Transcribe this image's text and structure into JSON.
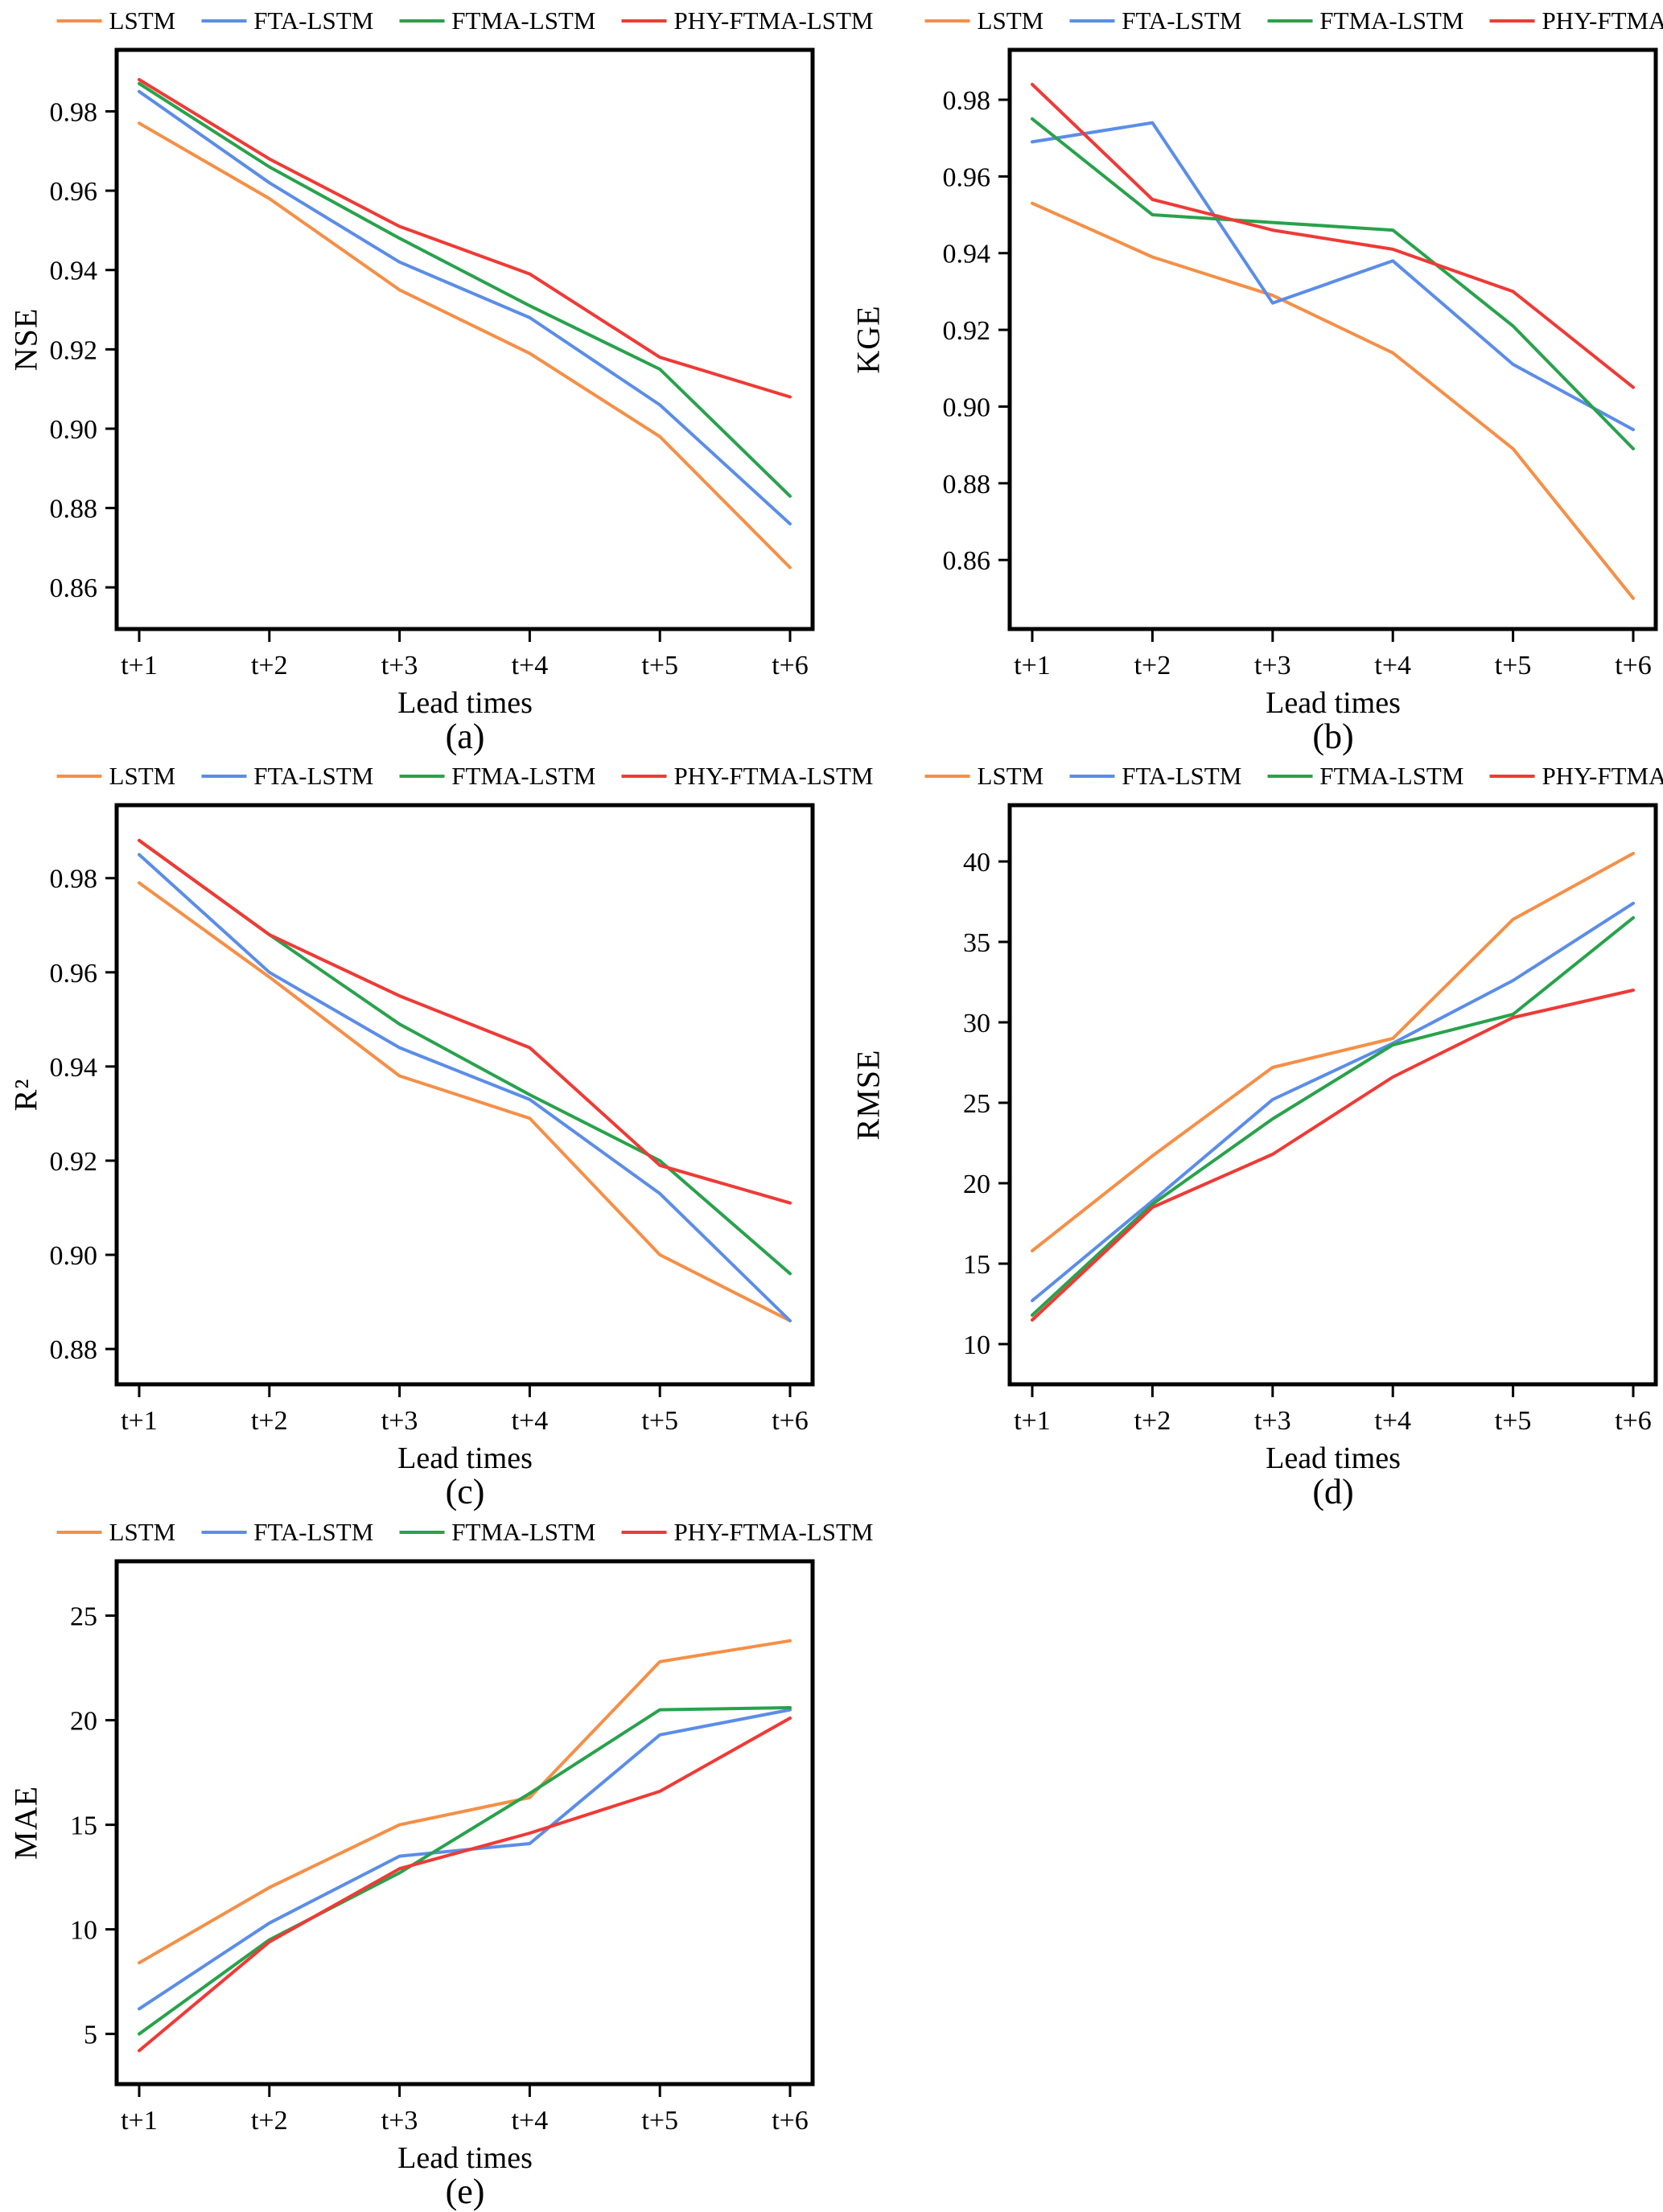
{
  "legend_items": [
    {
      "label": "LSTM",
      "color": "#F58F46"
    },
    {
      "label": "FTA-LSTM",
      "color": "#5B8DE8"
    },
    {
      "label": "FTMA-LSTM",
      "color": "#28A24C"
    },
    {
      "label": "PHY-FTMA-LSTM",
      "color": "#EF3A36"
    }
  ],
  "chart_data": [
    {
      "id": "a",
      "type": "line",
      "sublabel": "(a)",
      "xlabel": "Lead times",
      "ylabel": "NSE",
      "categories": [
        "t+1",
        "t+2",
        "t+3",
        "t+4",
        "t+5",
        "t+6"
      ],
      "ylim": [
        0.8495,
        0.9955
      ],
      "yticks": [
        0.86,
        0.88,
        0.9,
        0.92,
        0.94,
        0.96,
        0.98
      ],
      "ydecimals": 2,
      "legend_position": "top",
      "grid": false,
      "series": [
        {
          "name": "LSTM",
          "values": [
            0.977,
            0.958,
            0.935,
            0.919,
            0.898,
            0.865
          ]
        },
        {
          "name": "FTA-LSTM",
          "values": [
            0.985,
            0.962,
            0.942,
            0.928,
            0.906,
            0.876
          ]
        },
        {
          "name": "FTMA-LSTM",
          "values": [
            0.987,
            0.966,
            0.948,
            0.931,
            0.915,
            0.883
          ]
        },
        {
          "name": "PHY-FTMA-LSTM",
          "values": [
            0.988,
            0.968,
            0.951,
            0.939,
            0.918,
            0.908
          ]
        }
      ]
    },
    {
      "id": "b",
      "type": "line",
      "sublabel": "(b)",
      "xlabel": "Lead times",
      "ylabel": "KGE",
      "categories": [
        "t+1",
        "t+2",
        "t+3",
        "t+4",
        "t+5",
        "t+6"
      ],
      "ylim": [
        0.842,
        0.993
      ],
      "yticks": [
        0.86,
        0.88,
        0.9,
        0.92,
        0.94,
        0.96,
        0.98
      ],
      "ydecimals": 2,
      "legend_position": "top",
      "grid": false,
      "series": [
        {
          "name": "LSTM",
          "values": [
            0.953,
            0.939,
            0.929,
            0.914,
            0.889,
            0.85
          ]
        },
        {
          "name": "FTA-LSTM",
          "values": [
            0.969,
            0.974,
            0.927,
            0.938,
            0.911,
            0.894
          ]
        },
        {
          "name": "FTMA-LSTM",
          "values": [
            0.975,
            0.95,
            0.948,
            0.946,
            0.921,
            0.889
          ]
        },
        {
          "name": "PHY-FTMA-LSTM",
          "values": [
            0.984,
            0.954,
            0.946,
            0.941,
            0.93,
            0.905
          ]
        }
      ]
    },
    {
      "id": "c",
      "type": "line",
      "sublabel": "(c)",
      "xlabel": "Lead times",
      "ylabel": "R²",
      "categories": [
        "t+1",
        "t+2",
        "t+3",
        "t+4",
        "t+5",
        "t+6"
      ],
      "ylim": [
        0.8725,
        0.9955
      ],
      "yticks": [
        0.88,
        0.9,
        0.92,
        0.94,
        0.96,
        0.98
      ],
      "ydecimals": 2,
      "legend_position": "top",
      "grid": false,
      "series": [
        {
          "name": "LSTM",
          "values": [
            0.979,
            0.959,
            0.938,
            0.929,
            0.9,
            0.886
          ]
        },
        {
          "name": "FTA-LSTM",
          "values": [
            0.985,
            0.96,
            0.944,
            0.933,
            0.913,
            0.886
          ]
        },
        {
          "name": "FTMA-LSTM",
          "values": [
            0.988,
            0.968,
            0.949,
            0.934,
            0.92,
            0.896
          ]
        },
        {
          "name": "PHY-FTMA-LSTM",
          "values": [
            0.988,
            0.968,
            0.955,
            0.944,
            0.919,
            0.911
          ]
        }
      ]
    },
    {
      "id": "d",
      "type": "line",
      "sublabel": "(d)",
      "xlabel": "Lead times",
      "ylabel": "RMSE",
      "categories": [
        "t+1",
        "t+2",
        "t+3",
        "t+4",
        "t+5",
        "t+6"
      ],
      "ylim": [
        7.5,
        43.5
      ],
      "yticks": [
        10,
        15,
        20,
        25,
        30,
        35,
        40
      ],
      "ydecimals": 0,
      "legend_position": "top",
      "grid": false,
      "series": [
        {
          "name": "LSTM",
          "values": [
            15.8,
            21.7,
            27.2,
            29.0,
            36.4,
            40.5
          ]
        },
        {
          "name": "FTA-LSTM",
          "values": [
            12.7,
            18.9,
            25.2,
            28.7,
            32.6,
            37.4
          ]
        },
        {
          "name": "FTMA-LSTM",
          "values": [
            11.8,
            18.7,
            24.0,
            28.6,
            30.5,
            36.5
          ]
        },
        {
          "name": "PHY-FTMA-LSTM",
          "values": [
            11.5,
            18.5,
            21.8,
            26.6,
            30.3,
            32.0
          ]
        }
      ]
    },
    {
      "id": "e",
      "type": "line",
      "sublabel": "(e)",
      "xlabel": "Lead times",
      "ylabel": "MAE",
      "categories": [
        "t+1",
        "t+2",
        "t+3",
        "t+4",
        "t+5",
        "t+6"
      ],
      "ylim": [
        2.6,
        27.6
      ],
      "yticks": [
        5,
        10,
        15,
        20,
        25
      ],
      "ydecimals": 0,
      "legend_position": "top",
      "grid": false,
      "series": [
        {
          "name": "LSTM",
          "values": [
            8.4,
            12.0,
            15.0,
            16.3,
            22.8,
            23.8
          ]
        },
        {
          "name": "FTA-LSTM",
          "values": [
            6.2,
            10.3,
            13.5,
            14.1,
            19.3,
            20.5
          ]
        },
        {
          "name": "FTMA-LSTM",
          "values": [
            5.0,
            9.5,
            12.7,
            16.5,
            20.5,
            20.6
          ]
        },
        {
          "name": "PHY-FTMA-LSTM",
          "values": [
            4.2,
            9.4,
            12.9,
            14.6,
            16.6,
            20.1
          ]
        }
      ]
    }
  ]
}
